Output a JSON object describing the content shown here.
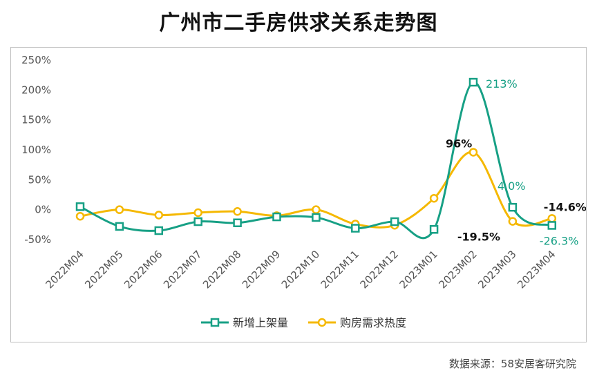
{
  "title": "广州市二手房供求关系走势图",
  "source": "数据来源：58安居客研究院",
  "colors": {
    "series1": "#17a085",
    "series2": "#f5b800",
    "axis_text": "#555555"
  },
  "chart_data": {
    "type": "line",
    "title": "广州市二手房供求关系走势图",
    "categories": [
      "2022M04",
      "2022M05",
      "2022M06",
      "2022M07",
      "2022M08",
      "2022M09",
      "2022M10",
      "2022M11",
      "2022M12",
      "2023M01",
      "2023M02",
      "2023M03",
      "2023M04"
    ],
    "yticks": [
      "250%",
      "200%",
      "150%",
      "100%",
      "50%",
      "0%",
      "-50%"
    ],
    "ylim": [
      -50,
      250
    ],
    "grid": false,
    "legend": "bottom",
    "series": [
      {
        "name": "新增上架量",
        "marker": "square",
        "color": "#17a085",
        "values": [
          5,
          -28,
          -35,
          -20,
          -22,
          -12,
          -13,
          -31,
          -20,
          -33,
          213,
          4.0,
          -26.3
        ],
        "labels": [
          "",
          "",
          "",
          "",
          "",
          "",
          "",
          "",
          "",
          "",
          "213%",
          "4.0%",
          "-26.3%"
        ]
      },
      {
        "name": "购房需求热度",
        "marker": "circle",
        "color": "#f5b800",
        "values": [
          -11,
          0,
          -9,
          -5,
          -3,
          -10,
          0,
          -24,
          -26,
          19,
          96,
          -19.5,
          -14.6
        ],
        "labels": [
          "",
          "",
          "",
          "",
          "",
          "",
          "",
          "",
          "",
          "",
          "96%",
          "-19.5%",
          "-14.6%"
        ]
      }
    ]
  }
}
